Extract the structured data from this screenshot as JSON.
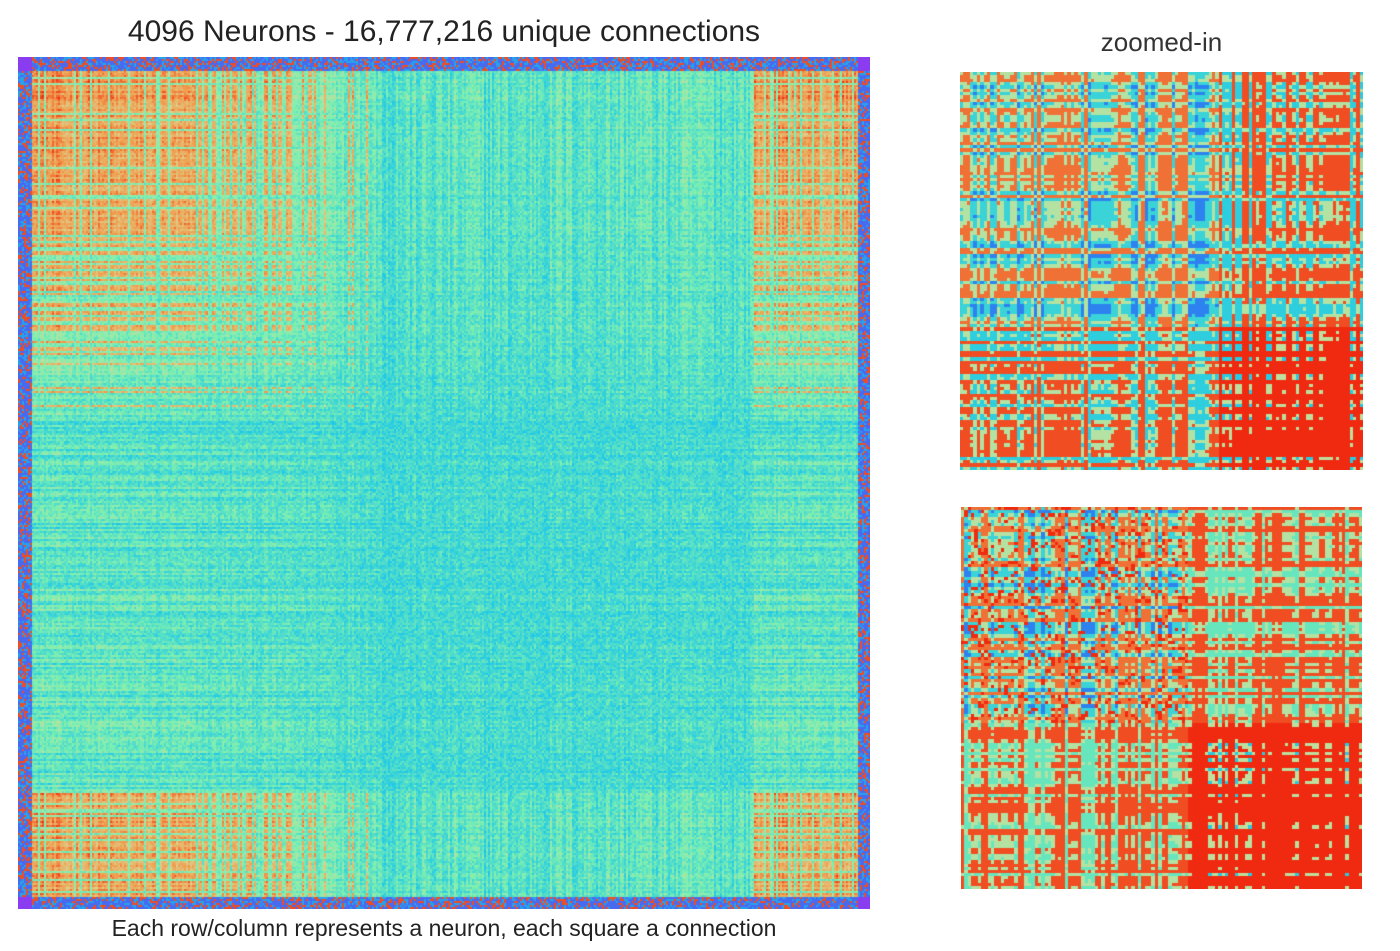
{
  "title": "4096 Neurons - 16,777,216 unique connections",
  "caption": "Each row/column represents a neuron, each square a connection",
  "zoom_title": "zoomed-in",
  "colors": {
    "colormap": "rainbow",
    "stops": [
      "#8a3cf0",
      "#2f7cf0",
      "#1fc8e8",
      "#7ef0b0",
      "#d8d898",
      "#f0a050",
      "#f02a10"
    ]
  },
  "chart_data": [
    {
      "type": "heatmap",
      "title": "4096 Neurons - 16,777,216 unique connections",
      "caption": "Each row/column represents a neuron, each square a connection",
      "rows": 4096,
      "columns": 4096,
      "connections": 16777216,
      "symmetric": true,
      "colormap": "rainbow",
      "structure": "high-value (red) blocks at all four corners, low-to-mid (cyan/green) values in the central region, purple/blue outer border rows and columns"
    },
    {
      "type": "heatmap",
      "title": "zoomed-in",
      "colormap": "rainbow",
      "structure": "block pattern: mixed cyan/orange upper-left, red block lower-right"
    },
    {
      "type": "heatmap",
      "title": "",
      "colormap": "rainbow",
      "structure": "block pattern: red/khaki dominated with cyan bands, large red block lower-right"
    }
  ]
}
